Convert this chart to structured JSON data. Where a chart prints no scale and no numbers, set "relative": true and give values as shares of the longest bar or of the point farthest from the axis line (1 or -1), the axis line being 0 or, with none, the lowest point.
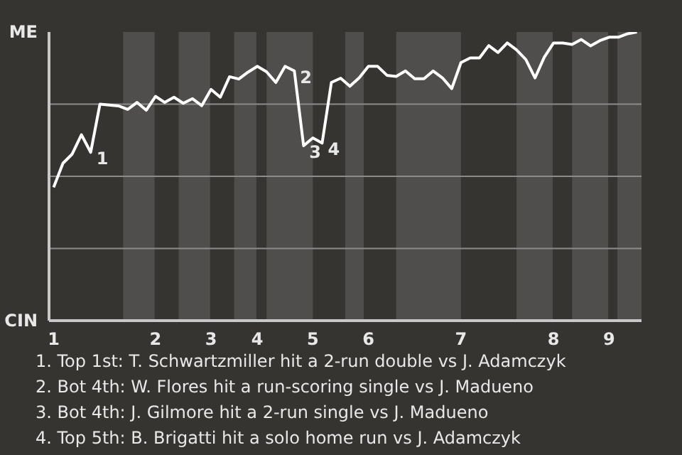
{
  "chart_data": {
    "type": "line",
    "relative": true,
    "categories": [
      "1",
      null,
      null,
      null,
      null,
      null,
      null,
      null,
      null,
      null,
      null,
      "2",
      null,
      null,
      null,
      null,
      null,
      "3",
      null,
      null,
      null,
      null,
      "4",
      null,
      null,
      null,
      null,
      null,
      "5",
      null,
      null,
      null,
      null,
      null,
      "6",
      null,
      null,
      null,
      null,
      null,
      null,
      null,
      null,
      null,
      "7",
      null,
      null,
      null,
      null,
      null,
      null,
      null,
      null,
      null,
      "8",
      null,
      null,
      null,
      null,
      null,
      "9",
      null,
      null,
      null
    ],
    "series": [
      {
        "color": "#ffffff",
        "values": [
          0.462,
          0.545,
          0.577,
          0.644,
          0.583,
          0.75,
          0.747,
          0.744,
          0.732,
          0.756,
          0.729,
          0.777,
          0.756,
          0.774,
          0.753,
          0.769,
          0.745,
          0.801,
          0.774,
          0.845,
          0.837,
          0.861,
          0.881,
          0.862,
          0.825,
          0.881,
          0.865,
          0.606,
          0.633,
          0.615,
          0.825,
          0.84,
          0.812,
          0.841,
          0.881,
          0.881,
          0.85,
          0.846,
          0.865,
          0.838,
          0.838,
          0.865,
          0.841,
          0.804,
          0.894,
          0.91,
          0.91,
          0.953,
          0.929,
          0.962,
          0.938,
          0.905,
          0.841,
          0.913,
          0.962,
          0.962,
          0.957,
          0.974,
          0.952,
          0.97,
          0.982,
          0.982,
          0.994,
          1
        ]
      }
    ],
    "marker": "none",
    "line_style": "solid",
    "ref_lines": [
      {
        "axis": "y",
        "value": 0.25,
        "color": "#8c8b89"
      },
      {
        "axis": "y",
        "value": 0.5,
        "color": "#8c8b89"
      },
      {
        "axis": "y",
        "value": 0.75,
        "color": "#8c8b89"
      }
    ],
    "annotations": [
      "ME",
      "CIN",
      "1",
      "2",
      "3",
      "4",
      "1. Top 1st: T. Schwartzmiller hit a 2-run double vs J. Adamczyk",
      "2. Bot 4th: W. Flores hit a run-scoring single vs J. Madueno",
      "3. Bot 4th: J. Gilmore hit a 2-run single vs J. Madueno",
      "4. Top 5th: B. Brigatti hit a solo home run vs J. Adamczyk"
    ]
  }
}
